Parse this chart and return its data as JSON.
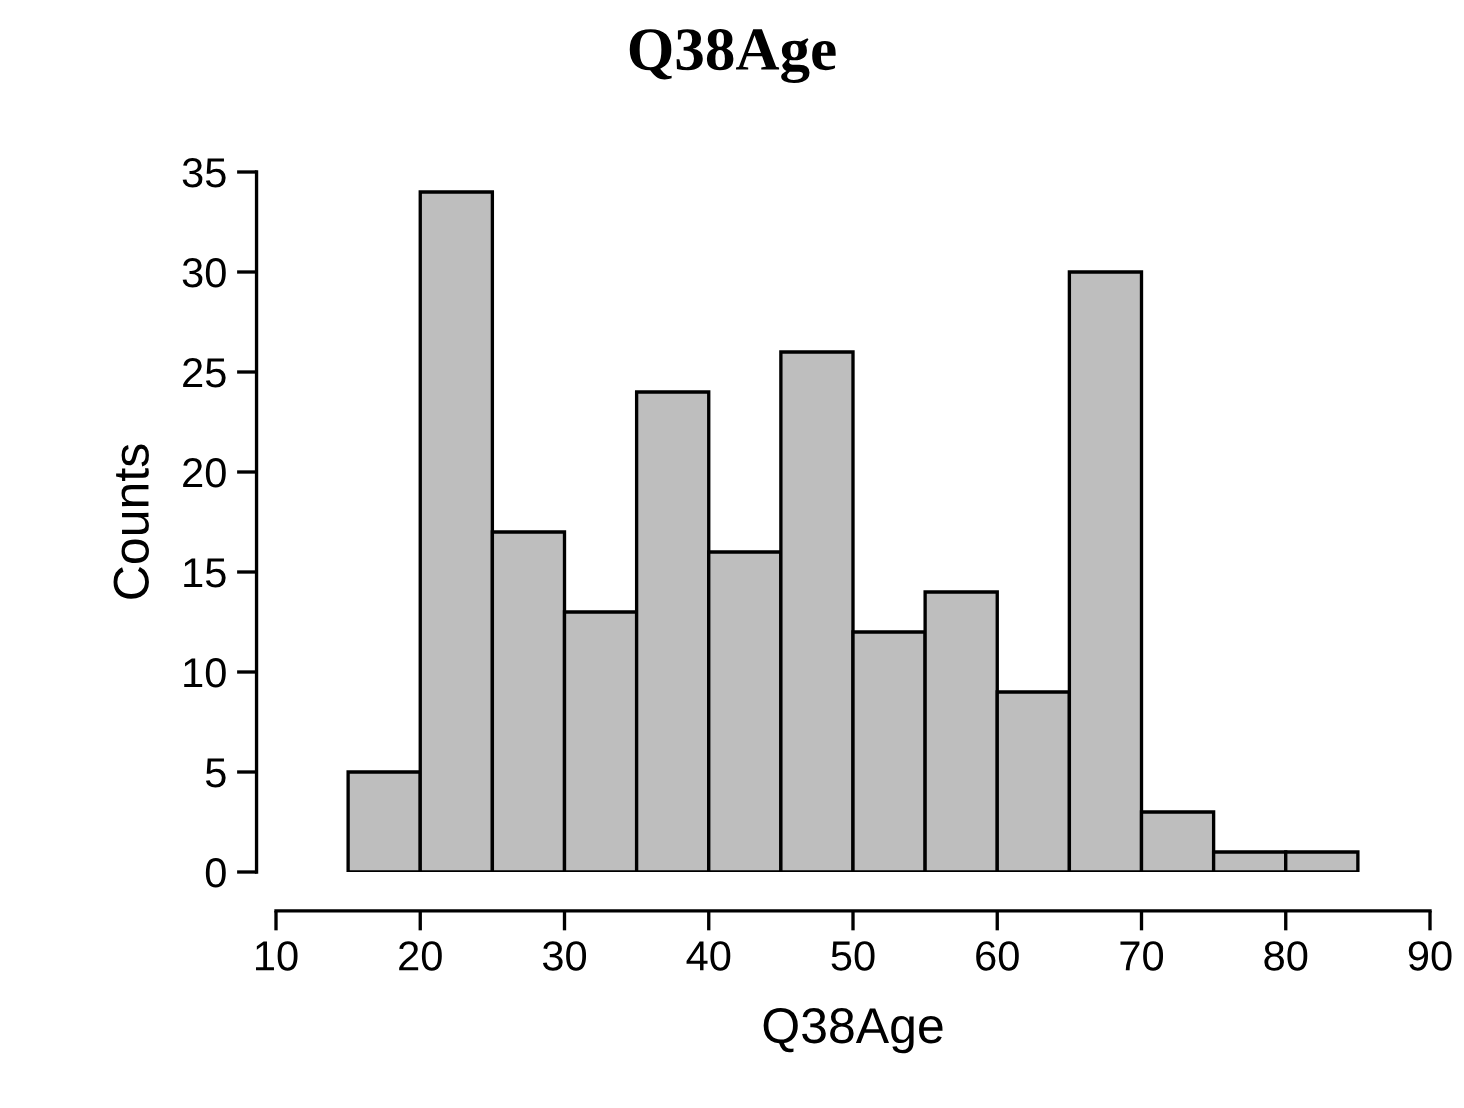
{
  "chart_data": {
    "type": "histogram",
    "title": "Q38Age",
    "xlabel": "Q38Age",
    "ylabel": "Counts",
    "bins": [
      15,
      20,
      25,
      30,
      35,
      40,
      45,
      50,
      55,
      60,
      65,
      70,
      75,
      80,
      85
    ],
    "values": [
      5,
      34,
      17,
      13,
      24,
      16,
      26,
      12,
      14,
      9,
      30,
      3,
      1,
      1
    ],
    "color": "#bebebe",
    "xlim": [
      10,
      90
    ],
    "xticks": [
      10,
      20,
      30,
      40,
      50,
      60,
      70,
      80,
      90
    ],
    "ylim": [
      0,
      35
    ],
    "yticks": [
      0,
      5,
      10,
      15,
      20,
      25,
      30,
      35
    ],
    "grid": false
  }
}
